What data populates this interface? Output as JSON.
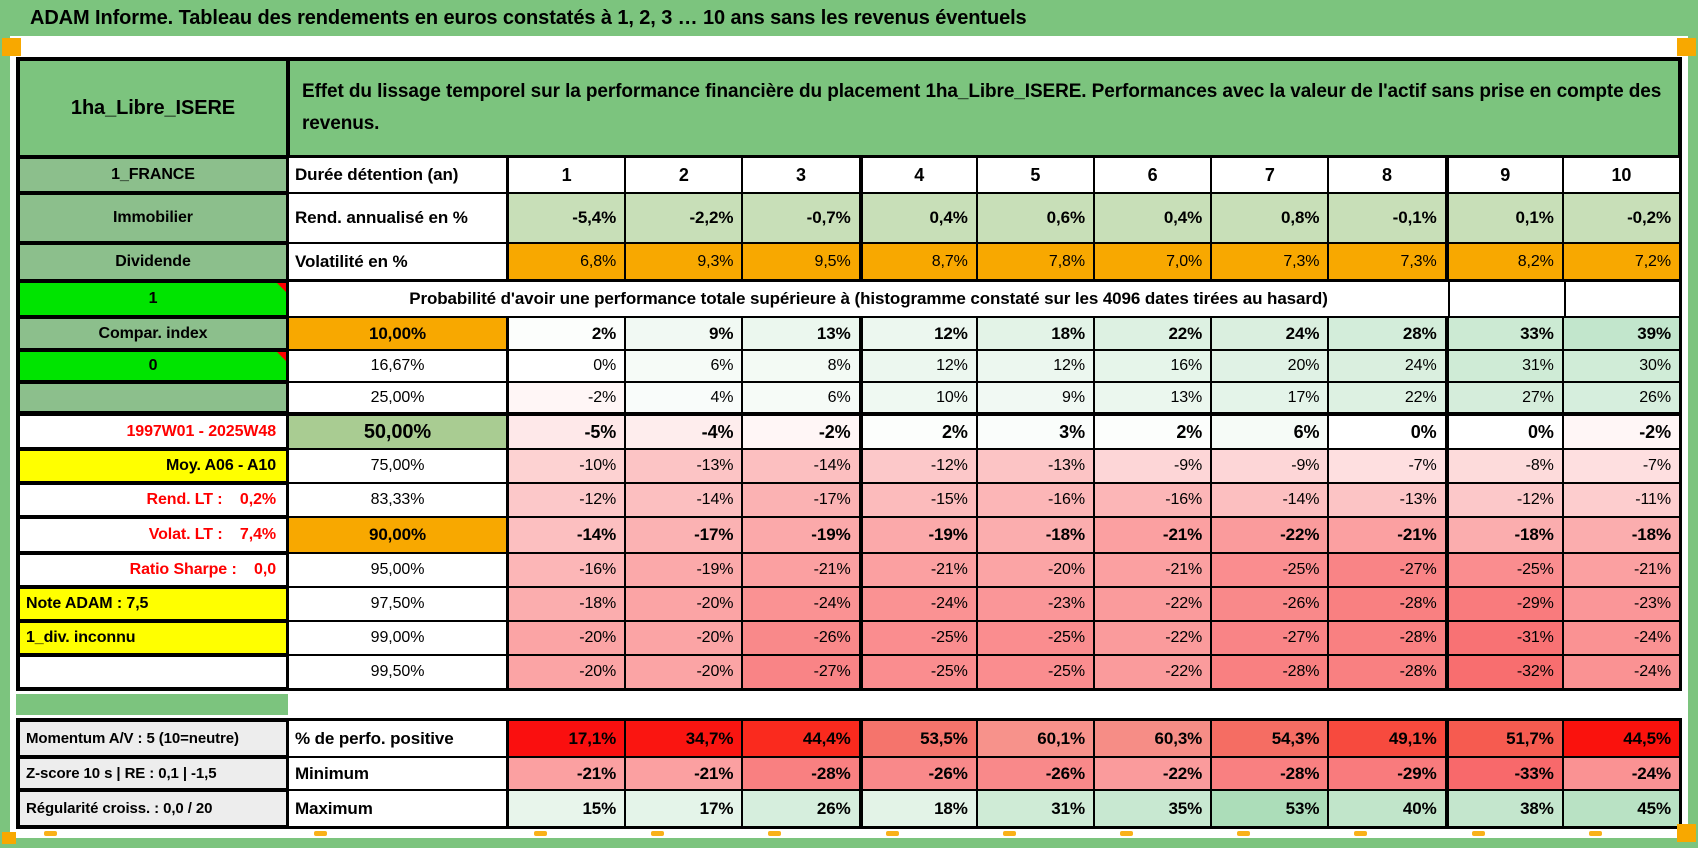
{
  "palette": {
    "frame_green": "#7CC47E",
    "label_green": "#8CBF8C",
    "bright_green": "#00E400",
    "orange": "#F8A800",
    "sage_50": "#A9CC92",
    "sage_light": "#C8DFB8",
    "yellow": "#FFFF00",
    "gray_label": "#EDEDED",
    "red_text": "#FF0000",
    "scale_red": "#F8696B",
    "scale_green": "#63BE7B",
    "perfo_colors": [
      "#FA0F0F",
      "#FA1511",
      "#FA2A1E",
      "#F5746C",
      "#F7928B",
      "#F68D86",
      "#F56D63",
      "#F74A3E",
      "#F65B50",
      "#FA120D"
    ]
  },
  "window": {
    "title": "ADAM Informe. Tableau des rendements en euros constatés à 1, 2, 3 … 10 ans sans les revenus éventuels"
  },
  "header": {
    "asset": "1ha_Libre_ISERE",
    "description": "Effet du lissage temporel sur la performance financière du placement 1ha_Libre_ISERE. Performances avec la valeur de l'actif sans prise en compte des revenus."
  },
  "rows": [
    {
      "id": "years",
      "left": {
        "t": "1_FRANCE",
        "bg": "label"
      },
      "mid": {
        "t": "Durée détention (an)",
        "a": "left",
        "b": 1
      },
      "cs": "years",
      "cb": 1,
      "cells": [
        "1",
        "2",
        "3",
        "4",
        "5",
        "6",
        "7",
        "8",
        "9",
        "10"
      ]
    },
    {
      "id": "rend",
      "left": {
        "t": "Immobilier",
        "bg": "label"
      },
      "mid": {
        "t": "Rend. annualisé en %",
        "a": "left",
        "b": 1
      },
      "cs": "sage",
      "cb": 1,
      "cells": [
        "-5,4%",
        "-2,2%",
        "-0,7%",
        "0,4%",
        "0,6%",
        "0,4%",
        "0,8%",
        "-0,1%",
        "0,1%",
        "-0,2%"
      ]
    },
    {
      "id": "volat",
      "left": {
        "t": "Dividende",
        "bg": "label"
      },
      "mid": {
        "t": "Volatilité en %",
        "a": "left",
        "b": 1
      },
      "cs": "orange",
      "cb": 0,
      "cells": [
        "6,8%",
        "9,3%",
        "9,5%",
        "8,7%",
        "7,8%",
        "7,0%",
        "7,3%",
        "7,3%",
        "8,2%",
        "7,2%"
      ]
    },
    {
      "id": "proba",
      "type": "merged",
      "left": {
        "t": "1",
        "bg": "bright",
        "m": 1
      },
      "merge": "Probabilité d'avoir une performance totale supérieure à (histogramme constaté sur les 4096 dates tirées au hasard)",
      "tails": [
        "",
        ""
      ]
    },
    {
      "id": "p10",
      "left": {
        "t": "Compar. index",
        "bg": "label"
      },
      "mid": {
        "t": "10,00%",
        "bg": "orange",
        "b": 1
      },
      "cs": "scale",
      "cb": 1,
      "cells": [
        "2%",
        "9%",
        "13%",
        "12%",
        "18%",
        "22%",
        "24%",
        "28%",
        "33%",
        "39%"
      ]
    },
    {
      "id": "p16",
      "left": {
        "t": "0",
        "bg": "bright",
        "m": 1
      },
      "mid": {
        "t": "16,67%"
      },
      "cs": "scale",
      "cb": 0,
      "cells": [
        "0%",
        "6%",
        "8%",
        "12%",
        "12%",
        "16%",
        "20%",
        "24%",
        "31%",
        "30%"
      ]
    },
    {
      "id": "p25",
      "left": {
        "t": "",
        "bg": "label"
      },
      "mid": {
        "t": "25,00%"
      },
      "cs": "scale",
      "cb": 0,
      "cells": [
        "-2%",
        "4%",
        "6%",
        "10%",
        "9%",
        "13%",
        "17%",
        "22%",
        "27%",
        "26%"
      ]
    },
    {
      "id": "p50",
      "left": {
        "t": "1997W01 - 2025W48",
        "bg": "white",
        "c": "red",
        "a": "right"
      },
      "mid": {
        "t": "50,00%",
        "bg": "sage50",
        "b": 1,
        "big": 1
      },
      "cs": "scale",
      "cb": 1,
      "cells": [
        "-5%",
        "-4%",
        "-2%",
        "2%",
        "3%",
        "2%",
        "6%",
        "0%",
        "0%",
        "-2%"
      ]
    },
    {
      "id": "p75",
      "left": {
        "t": "Moy. A06 - A10",
        "bg": "yellow",
        "a": "right"
      },
      "mid": {
        "t": "75,00%"
      },
      "cs": "scale",
      "cb": 0,
      "cells": [
        "-10%",
        "-13%",
        "-14%",
        "-12%",
        "-13%",
        "-9%",
        "-9%",
        "-7%",
        "-8%",
        "-7%"
      ]
    },
    {
      "id": "p83",
      "left": {
        "t": "Rend. LT :    0,2%",
        "bg": "white",
        "c": "red",
        "a": "right"
      },
      "mid": {
        "t": "83,33%"
      },
      "cs": "scale",
      "cb": 0,
      "cells": [
        "-12%",
        "-14%",
        "-17%",
        "-15%",
        "-16%",
        "-16%",
        "-14%",
        "-13%",
        "-12%",
        "-11%"
      ]
    },
    {
      "id": "p90",
      "left": {
        "t": "Volat. LT :    7,4%",
        "bg": "white",
        "c": "red",
        "a": "right"
      },
      "mid": {
        "t": "90,00%",
        "bg": "orange",
        "b": 1
      },
      "cs": "scale",
      "cb": 1,
      "cells": [
        "-14%",
        "-17%",
        "-19%",
        "-19%",
        "-18%",
        "-21%",
        "-22%",
        "-21%",
        "-18%",
        "-18%"
      ]
    },
    {
      "id": "p95",
      "left": {
        "t": "Ratio Sharpe :    0,0",
        "bg": "white",
        "c": "red",
        "a": "right"
      },
      "mid": {
        "t": "95,00%"
      },
      "cs": "scale",
      "cb": 0,
      "cells": [
        "-16%",
        "-19%",
        "-21%",
        "-21%",
        "-20%",
        "-21%",
        "-25%",
        "-27%",
        "-25%",
        "-21%"
      ]
    },
    {
      "id": "p97",
      "left": {
        "t": "Note ADAM : 7,5",
        "bg": "yellow",
        "a": "left"
      },
      "mid": {
        "t": "97,50%"
      },
      "cs": "scale",
      "cb": 0,
      "cells": [
        "-18%",
        "-20%",
        "-24%",
        "-24%",
        "-23%",
        "-22%",
        "-26%",
        "-28%",
        "-29%",
        "-23%"
      ]
    },
    {
      "id": "p99",
      "left": {
        "t": "1_div. inconnu",
        "bg": "yellow",
        "a": "left"
      },
      "mid": {
        "t": "99,00%"
      },
      "cs": "scale",
      "cb": 0,
      "cells": [
        "-20%",
        "-20%",
        "-26%",
        "-25%",
        "-25%",
        "-22%",
        "-27%",
        "-28%",
        "-31%",
        "-24%"
      ]
    },
    {
      "id": "p995",
      "left": {
        "t": "",
        "bg": "white"
      },
      "mid": {
        "t": "99,50%"
      },
      "cs": "scale",
      "cb": 0,
      "cells": [
        "-20%",
        "-20%",
        "-27%",
        "-25%",
        "-25%",
        "-22%",
        "-28%",
        "-28%",
        "-32%",
        "-24%"
      ]
    },
    {
      "id": "perfo",
      "left": {
        "t": "Momentum A/V : 5 (10=neutre)",
        "bg": "gray",
        "a": "left"
      },
      "mid": {
        "t": "% de perfo. positive",
        "a": "left",
        "b": 1
      },
      "cs": "perfo",
      "cb": 1,
      "cells": [
        "17,1%",
        "34,7%",
        "44,4%",
        "53,5%",
        "60,1%",
        "60,3%",
        "54,3%",
        "49,1%",
        "51,7%",
        "44,5%"
      ]
    },
    {
      "id": "min",
      "left": {
        "t": "Z-score 10 s | RE : 0,1 | -1,5",
        "bg": "gray",
        "a": "left"
      },
      "mid": {
        "t": "Minimum",
        "a": "left",
        "b": 1
      },
      "cs": "scale",
      "cb": 1,
      "cells": [
        "-21%",
        "-21%",
        "-28%",
        "-26%",
        "-26%",
        "-22%",
        "-28%",
        "-29%",
        "-33%",
        "-24%"
      ]
    },
    {
      "id": "max",
      "left": {
        "t": "Régularité croiss. : 0,0 / 20",
        "bg": "gray",
        "a": "left"
      },
      "mid": {
        "t": "Maximum",
        "a": "left",
        "b": 1
      },
      "cs": "scale",
      "cb": 1,
      "cells": [
        "15%",
        "17%",
        "26%",
        "18%",
        "31%",
        "35%",
        "53%",
        "40%",
        "38%",
        "45%"
      ]
    }
  ]
}
